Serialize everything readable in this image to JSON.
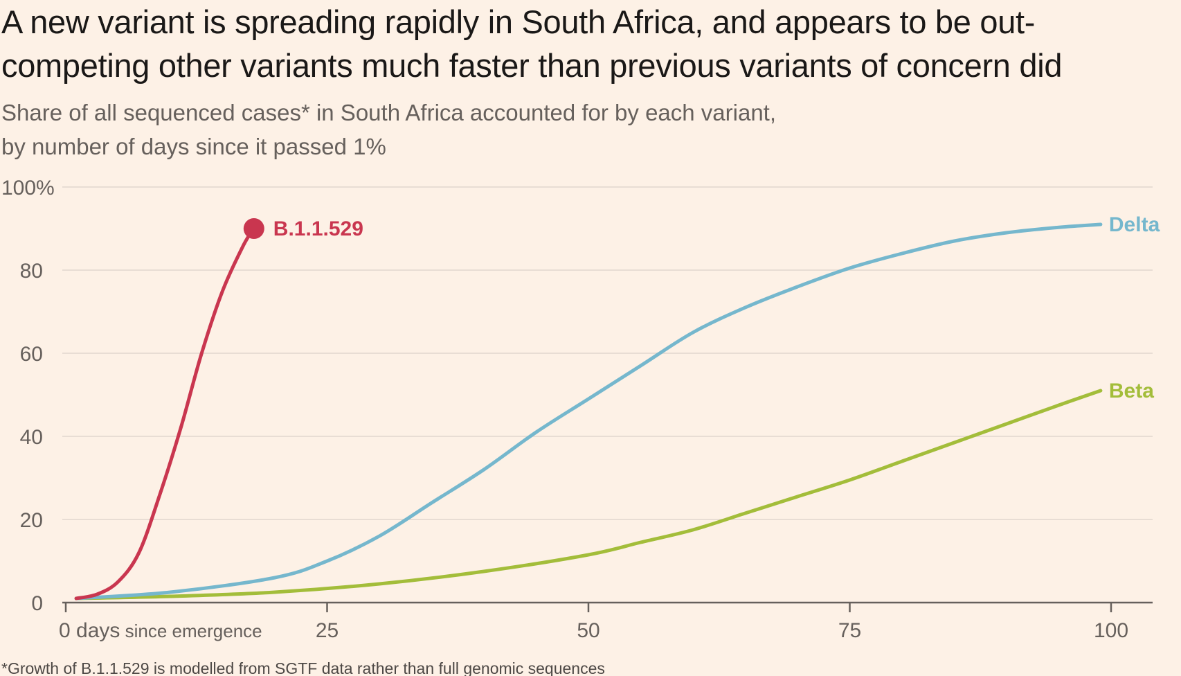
{
  "title": "A new variant is spreading rapidly in South Africa, and appears to be out-competing other variants much faster than previous variants of concern did",
  "subtitle_line1": "Share of all sequenced cases* in South Africa accounted for by each variant,",
  "subtitle_line2": "by number of days since it passed 1%",
  "footnote": "*Growth of B.1.1.529 is modelled from SGTF data rather than full genomic sequences",
  "colors": {
    "B.1.1.529": "#c9364f",
    "Delta": "#75b7cd",
    "Beta": "#a3bd3a",
    "grid": "#e8ddd4",
    "axis": "#66605c"
  },
  "chart_data": {
    "type": "line",
    "title": "Share of all sequenced cases* in South Africa accounted for by each variant, by number of days since it passed 1%",
    "xlabel": "days since emergence",
    "ylabel": "",
    "xlim": [
      0,
      100
    ],
    "ylim": [
      0,
      100
    ],
    "y_ticks": [
      {
        "value": 0,
        "label": "0"
      },
      {
        "value": 20,
        "label": "20"
      },
      {
        "value": 40,
        "label": "40"
      },
      {
        "value": 60,
        "label": "60"
      },
      {
        "value": 80,
        "label": "80"
      },
      {
        "value": 100,
        "label": "100%"
      }
    ],
    "x_ticks": [
      {
        "value": 0,
        "label": "0 days",
        "suffix": "since emergence"
      },
      {
        "value": 25,
        "label": "25",
        "suffix": ""
      },
      {
        "value": 50,
        "label": "50",
        "suffix": ""
      },
      {
        "value": 75,
        "label": "75",
        "suffix": ""
      },
      {
        "value": 100,
        "label": "100",
        "suffix": ""
      }
    ],
    "grid": true,
    "series": [
      {
        "name": "B.1.1.529",
        "label": "B.1.1.529",
        "end_marker": true,
        "x": [
          1,
          3,
          5,
          7,
          9,
          11,
          13,
          15,
          17,
          18
        ],
        "values": [
          1,
          2,
          5,
          12,
          26,
          42,
          60,
          75,
          86,
          90
        ]
      },
      {
        "name": "Delta",
        "label": "Delta",
        "end_marker": false,
        "x": [
          1,
          10,
          20,
          25,
          30,
          35,
          40,
          45,
          50,
          55,
          60,
          65,
          70,
          75,
          80,
          85,
          90,
          95,
          99
        ],
        "values": [
          1,
          2.5,
          6,
          10,
          16,
          24,
          32,
          41,
          49,
          57,
          65,
          71,
          76,
          80.5,
          84,
          87,
          89,
          90.3,
          91
        ]
      },
      {
        "name": "Beta",
        "label": "Beta",
        "end_marker": false,
        "x": [
          1,
          10,
          20,
          30,
          40,
          50,
          55,
          60,
          65,
          70,
          75,
          80,
          85,
          90,
          95,
          99
        ],
        "values": [
          1,
          1.5,
          2.5,
          4.5,
          7.5,
          11.5,
          14.5,
          17.5,
          21.5,
          25.5,
          29.5,
          34,
          38.5,
          43,
          47.5,
          51
        ]
      }
    ]
  }
}
